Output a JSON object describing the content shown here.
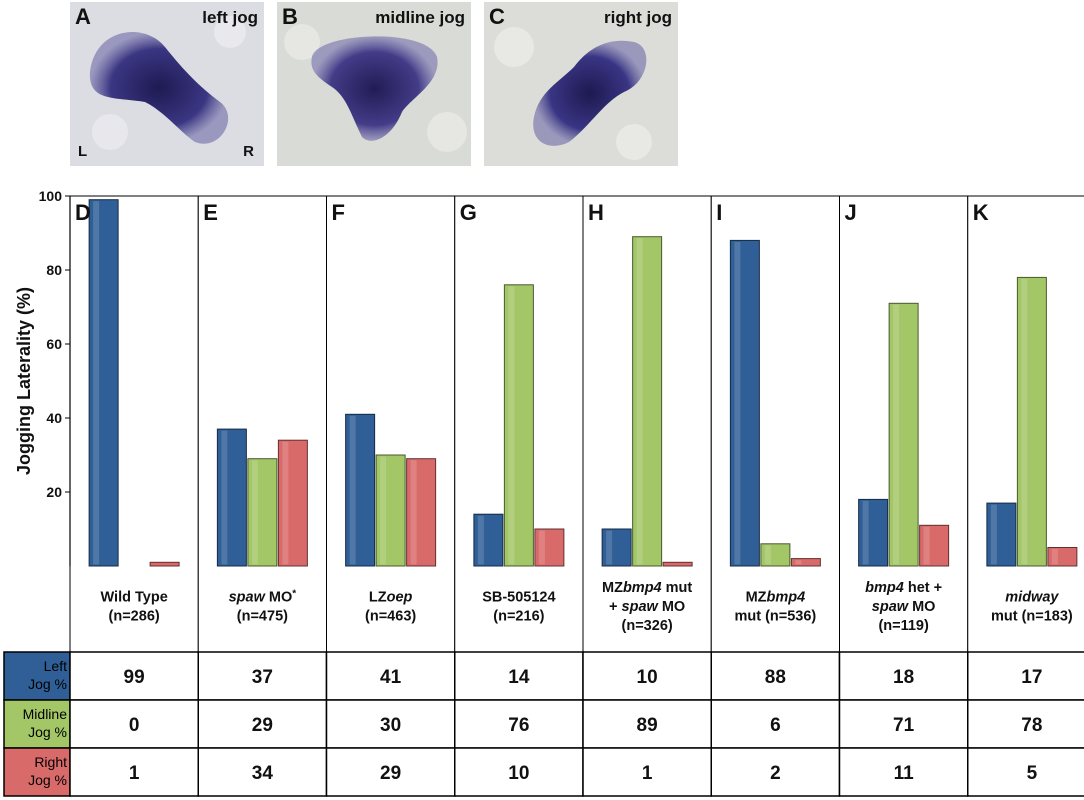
{
  "micrographs": [
    {
      "letter": "A",
      "caption": "left jog",
      "left_marker": "L",
      "right_marker": "R"
    },
    {
      "letter": "B",
      "caption": "midline jog"
    },
    {
      "letter": "C",
      "caption": "right jog"
    }
  ],
  "chart_data": {
    "type": "bar",
    "ylabel": "Jogging Laterality (%)",
    "ylim": [
      0,
      100
    ],
    "yticks": [
      20,
      40,
      60,
      80,
      100
    ],
    "grid": false,
    "panels": [
      {
        "letter": "D",
        "lines": [
          [
            {
              "t": "Wild Type"
            }
          ],
          [
            {
              "t": "(n=286)"
            }
          ]
        ]
      },
      {
        "letter": "E",
        "lines": [
          [
            {
              "t": "spaw",
              "i": true
            },
            {
              "t": " MO"
            },
            {
              "t": "*",
              "sup": true
            }
          ],
          [
            {
              "t": "(n=475)"
            }
          ]
        ]
      },
      {
        "letter": "F",
        "lines": [
          [
            {
              "t": "LZ"
            },
            {
              "t": "oep",
              "i": true
            }
          ],
          [
            {
              "t": "(n=463)"
            }
          ]
        ]
      },
      {
        "letter": "G",
        "lines": [
          [
            {
              "t": "SB-505124"
            }
          ],
          [
            {
              "t": "(n=216)"
            }
          ]
        ]
      },
      {
        "letter": "H",
        "lines": [
          [
            {
              "t": "MZ"
            },
            {
              "t": "bmp4",
              "i": true
            },
            {
              "t": " mut"
            }
          ],
          [
            {
              "t": "+ "
            },
            {
              "t": "spaw",
              "i": true
            },
            {
              "t": " MO"
            }
          ],
          [
            {
              "t": "(n=326)"
            }
          ]
        ]
      },
      {
        "letter": "I",
        "lines": [
          [
            {
              "t": "MZ"
            },
            {
              "t": "bmp4",
              "i": true
            }
          ],
          [
            {
              "t": "mut (n=536)"
            }
          ]
        ]
      },
      {
        "letter": "J",
        "lines": [
          [
            {
              "t": "bmp4",
              "i": true
            },
            {
              "t": " het +"
            }
          ],
          [
            {
              "t": "spaw",
              "i": true
            },
            {
              "t": " MO"
            }
          ],
          [
            {
              "t": "(n=119)"
            }
          ]
        ]
      },
      {
        "letter": "K",
        "lines": [
          [
            {
              "t": "midway",
              "i": true
            }
          ],
          [
            {
              "t": "mut (n=183)"
            }
          ]
        ]
      }
    ],
    "series": [
      {
        "key": "left",
        "label_lines": [
          "Left",
          "Jog %"
        ],
        "color": "#2f5f96",
        "values": [
          99,
          37,
          41,
          14,
          10,
          88,
          18,
          17
        ]
      },
      {
        "key": "midline",
        "label_lines": [
          "Midline",
          "Jog %"
        ],
        "color": "#a3c667",
        "values": [
          0,
          29,
          30,
          76,
          89,
          6,
          71,
          78
        ]
      },
      {
        "key": "right",
        "label_lines": [
          "Right",
          "Jog %"
        ],
        "color": "#d96a6a",
        "values": [
          1,
          34,
          29,
          10,
          1,
          2,
          11,
          5
        ]
      }
    ]
  }
}
